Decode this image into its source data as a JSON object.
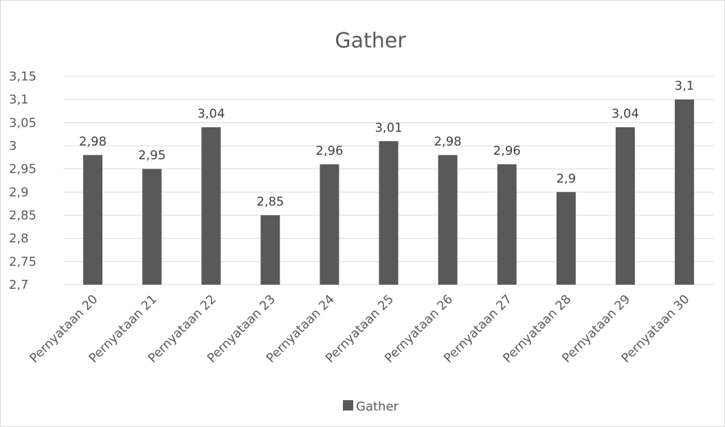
{
  "chart_data": {
    "type": "bar",
    "title": "Gather",
    "categories": [
      "Pernyataan 20",
      "Pernyataan 21",
      "Pernyataan 22",
      "Pernyataan 23",
      "Pernyataan 24",
      "Pernyataan 25",
      "Pernyataan 26",
      "Pernyataan 27",
      "Pernyataan 28",
      "Pernyataan 29",
      "Pernyataan 30"
    ],
    "series": [
      {
        "name": "Gather",
        "values": [
          2.98,
          2.95,
          3.04,
          2.85,
          2.96,
          3.01,
          2.98,
          2.96,
          2.9,
          3.04,
          3.1
        ],
        "data_labels": [
          "2,98",
          "2,95",
          "3,04",
          "2,85",
          "2,96",
          "3,01",
          "2,98",
          "2,96",
          "2,9",
          "3,04",
          "3,1"
        ],
        "color": "#595959"
      }
    ],
    "ylim": [
      2.7,
      3.15
    ],
    "y_ticks": [
      2.7,
      2.75,
      2.8,
      2.85,
      2.9,
      2.95,
      3.0,
      3.05,
      3.1,
      3.15
    ],
    "y_tick_labels": [
      "2,7",
      "2,75",
      "2,8",
      "2,85",
      "2,9",
      "2,95",
      "3",
      "3,05",
      "3,1",
      "3,15"
    ],
    "grid": true,
    "legend_position": "bottom",
    "gridline_color": "#d9d9d9",
    "text_color": "#595959"
  }
}
